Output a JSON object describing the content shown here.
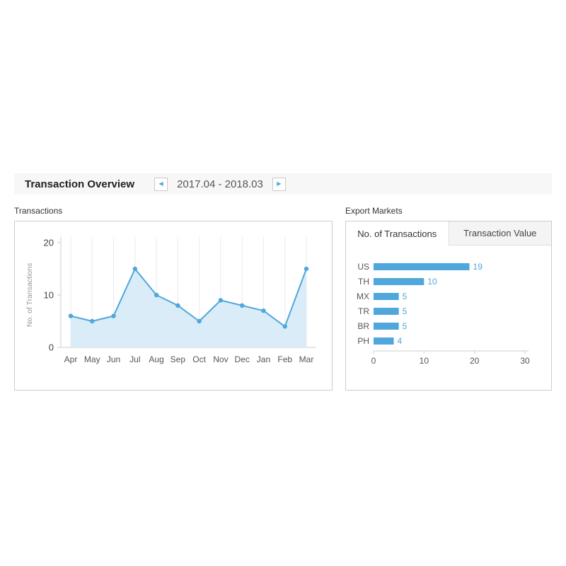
{
  "header": {
    "title": "Transaction Overview",
    "date_range": "2017.04 - 2018.03",
    "prev_icon": "◀",
    "next_icon": "▶"
  },
  "transactions_panel": {
    "label": "Transactions"
  },
  "export_panel": {
    "label": "Export Markets",
    "tabs": [
      {
        "label": "No. of Transactions"
      },
      {
        "label": "Transaction Value"
      }
    ],
    "active_tab": "No. of Transactions"
  },
  "colors": {
    "accent": "#4FA7DC",
    "area_fill": "#D9ECF8",
    "grid": "#EBEBEB",
    "axis": "#CCCCCC",
    "tick_text": "#555555"
  },
  "chart_data": [
    {
      "type": "area",
      "title": "Transactions",
      "x": [
        "Apr",
        "May",
        "Jun",
        "Jul",
        "Aug",
        "Sep",
        "Oct",
        "Nov",
        "Dec",
        "Jan",
        "Feb",
        "Mar"
      ],
      "values": [
        6,
        5,
        6,
        15,
        10,
        8,
        5,
        9,
        8,
        7,
        4,
        15
      ],
      "ylabel": "No. of Transactions",
      "xlabel": "",
      "ylim": [
        0,
        20
      ],
      "yticks": [
        0,
        10,
        20
      ],
      "grid": true,
      "legend_position": "none"
    },
    {
      "type": "bar",
      "orientation": "horizontal",
      "title": "Export Markets - No. of Transactions",
      "categories": [
        "US",
        "TH",
        "MX",
        "TR",
        "BR",
        "PH"
      ],
      "values": [
        19,
        10,
        5,
        5,
        5,
        4
      ],
      "xlim": [
        0,
        30
      ],
      "xticks": [
        0,
        10,
        20,
        30
      ],
      "grid": false,
      "legend_position": "none"
    }
  ]
}
